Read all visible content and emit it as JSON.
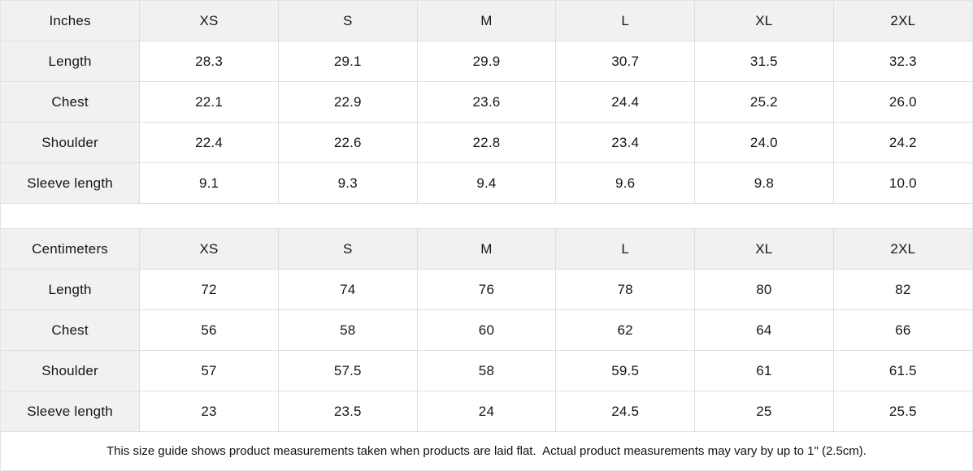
{
  "tables": [
    {
      "unit_label": "Inches",
      "sizes": [
        "XS",
        "S",
        "M",
        "L",
        "XL",
        "2XL"
      ],
      "rows": [
        {
          "label": "Length",
          "values": [
            "28.3",
            "29.1",
            "29.9",
            "30.7",
            "31.5",
            "32.3"
          ]
        },
        {
          "label": "Chest",
          "values": [
            "22.1",
            "22.9",
            "23.6",
            "24.4",
            "25.2",
            "26.0"
          ]
        },
        {
          "label": "Shoulder",
          "values": [
            "22.4",
            "22.6",
            "22.8",
            "23.4",
            "24.0",
            "24.2"
          ]
        },
        {
          "label": "Sleeve length",
          "values": [
            "9.1",
            "9.3",
            "9.4",
            "9.6",
            "9.8",
            "10.0"
          ]
        }
      ]
    },
    {
      "unit_label": "Centimeters",
      "sizes": [
        "XS",
        "S",
        "M",
        "L",
        "XL",
        "2XL"
      ],
      "rows": [
        {
          "label": "Length",
          "values": [
            "72",
            "74",
            "76",
            "78",
            "80",
            "82"
          ]
        },
        {
          "label": "Chest",
          "values": [
            "56",
            "58",
            "60",
            "62",
            "64",
            "66"
          ]
        },
        {
          "label": "Shoulder",
          "values": [
            "57",
            "57.5",
            "58",
            "59.5",
            "61",
            "61.5"
          ]
        },
        {
          "label": "Sleeve length",
          "values": [
            "23",
            "23.5",
            "24",
            "24.5",
            "25",
            "25.5"
          ]
        }
      ]
    }
  ],
  "footer": {
    "note": "This size guide shows product measurements taken when products are laid flat.  Actual product measurements may vary by up to 1\" (2.5cm)."
  },
  "colors": {
    "header_bg": "#f1f1f1",
    "border": "#dedede",
    "text": "#161616",
    "page_bg": "#ffffff"
  }
}
